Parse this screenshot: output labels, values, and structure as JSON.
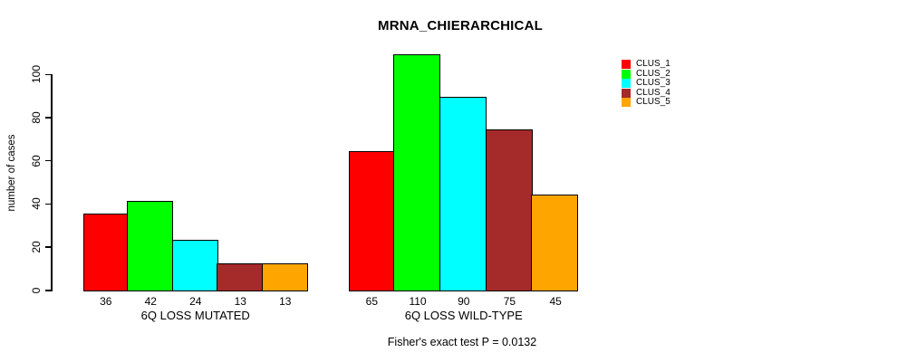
{
  "header": {
    "title": "MRNA_CHIERARCHICAL"
  },
  "y_axis": {
    "label": "number of cases",
    "ticks": [
      0,
      20,
      40,
      60,
      80,
      100
    ]
  },
  "footer": {
    "annotation": "Fisher's exact test P = 0.0132"
  },
  "legend": {
    "items": [
      {
        "label": "CLUS_1",
        "color": "#ff0000"
      },
      {
        "label": "CLUS_2",
        "color": "#00ff00"
      },
      {
        "label": "CLUS_3",
        "color": "#00ffff"
      },
      {
        "label": "CLUS_4",
        "color": "#a52a2a"
      },
      {
        "label": "CLUS_5",
        "color": "#ffa500"
      }
    ]
  },
  "chart_data": {
    "type": "bar",
    "title": "MRNA_CHIERARCHICAL",
    "ylabel": "number of cases",
    "ylim": [
      0,
      110
    ],
    "yticks": [
      0,
      20,
      40,
      60,
      80,
      100
    ],
    "grid": false,
    "legend_position": "right",
    "annotation": "Fisher's exact test P = 0.0132",
    "series": [
      "CLUS_1",
      "CLUS_2",
      "CLUS_3",
      "CLUS_4",
      "CLUS_5"
    ],
    "colors": [
      "#ff0000",
      "#00ff00",
      "#00ffff",
      "#a52a2a",
      "#ffa500"
    ],
    "groups": [
      {
        "label": "6Q LOSS MUTATED",
        "values": [
          36,
          42,
          24,
          13,
          13
        ]
      },
      {
        "label": "6Q LOSS WILD-TYPE",
        "values": [
          65,
          110,
          90,
          75,
          45
        ]
      }
    ],
    "bar_value_labels_shown": true
  }
}
